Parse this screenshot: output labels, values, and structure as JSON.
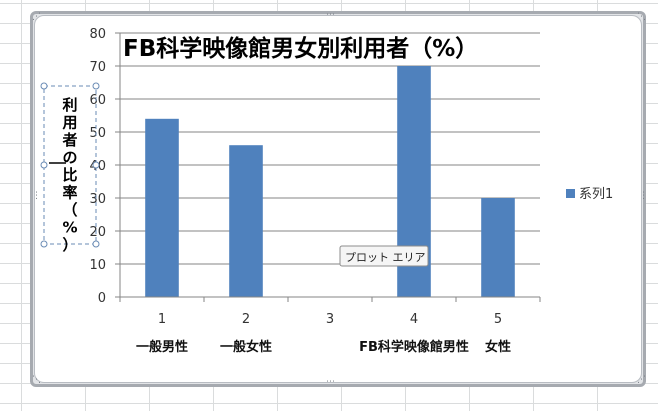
{
  "chart_data": {
    "type": "bar",
    "title": "FB科学映像館男女別利用者（%）",
    "ylabel": "利用者の比率（%）",
    "xlabel": "",
    "ylim": [
      0,
      80
    ],
    "yticks": [
      0,
      10,
      20,
      30,
      40,
      50,
      60,
      70,
      80
    ],
    "grid": true,
    "legend_position": "right",
    "categories": [
      "1",
      "2",
      "3",
      "4",
      "5"
    ],
    "category_labels": [
      "一般男性",
      "一般女性",
      "",
      "FB科学映像館男性",
      "女性"
    ],
    "series": [
      {
        "name": "系列1",
        "values": [
          54,
          46,
          0,
          70,
          30
        ],
        "color": "#4f81bd"
      }
    ]
  },
  "tooltip": {
    "label": "プロット エリア"
  }
}
